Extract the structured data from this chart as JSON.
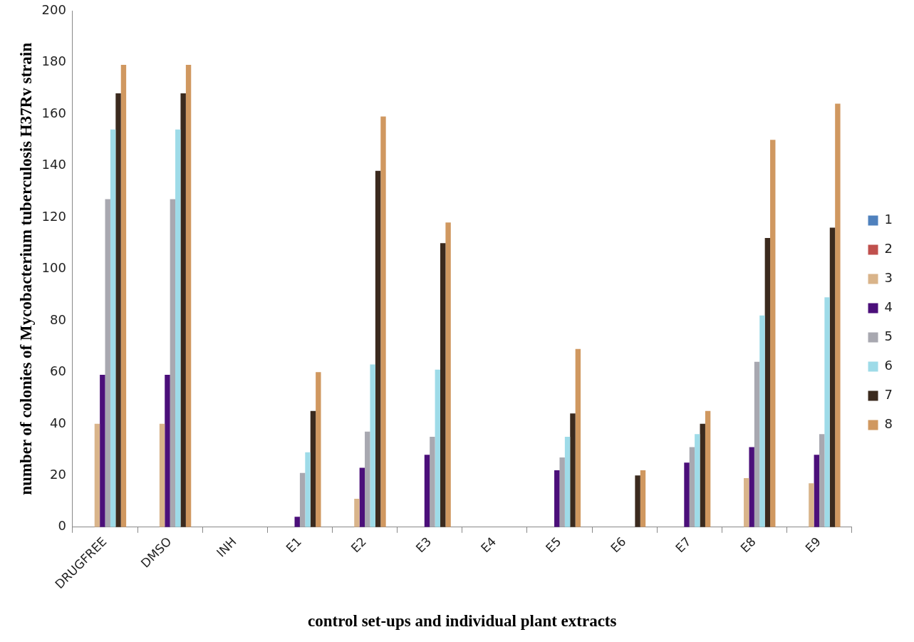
{
  "chart_data": {
    "type": "bar",
    "xlabel": "control set-ups and individual plant extracts",
    "ylabel": "number of colonies of Mycobacterium tuberculosis H37Rv strain",
    "categories": [
      "DRUGFREE",
      "DMSO",
      "INH",
      "E1",
      "E2",
      "E3",
      "E4",
      "E5",
      "E6",
      "E7",
      "E8",
      "E9"
    ],
    "series": [
      {
        "name": "1",
        "color": "#4f81bd",
        "values": [
          0,
          0,
          0,
          0,
          0,
          0,
          0,
          0,
          0,
          0,
          0,
          0
        ]
      },
      {
        "name": "2",
        "color": "#c0504d",
        "values": [
          0,
          0,
          0,
          0,
          0,
          0,
          0,
          0,
          0,
          0,
          0,
          0
        ]
      },
      {
        "name": "3",
        "color": "#d9b48a",
        "values": [
          40,
          40,
          0,
          0,
          11,
          0,
          0,
          0,
          0,
          0,
          19,
          17
        ]
      },
      {
        "name": "4",
        "color": "#4b0f7a",
        "values": [
          59,
          59,
          0,
          4,
          23,
          28,
          0,
          22,
          0,
          25,
          31,
          28
        ]
      },
      {
        "name": "5",
        "color": "#a8a8b0",
        "values": [
          127,
          127,
          0,
          21,
          37,
          35,
          0,
          27,
          0,
          31,
          64,
          36
        ]
      },
      {
        "name": "6",
        "color": "#9edbe8",
        "values": [
          154,
          154,
          0,
          29,
          63,
          61,
          0,
          35,
          0,
          36,
          82,
          89
        ]
      },
      {
        "name": "7",
        "color": "#3b2a1e",
        "values": [
          168,
          168,
          0,
          45,
          138,
          110,
          0,
          44,
          20,
          40,
          112,
          116
        ]
      },
      {
        "name": "8",
        "color": "#d09860",
        "values": [
          179,
          179,
          0,
          60,
          159,
          118,
          0,
          69,
          22,
          45,
          150,
          164
        ]
      }
    ],
    "ylim": [
      0,
      200
    ],
    "yticks": [
      0,
      20,
      40,
      60,
      80,
      100,
      120,
      140,
      160,
      180,
      200
    ],
    "grid": false,
    "legend": "right"
  }
}
